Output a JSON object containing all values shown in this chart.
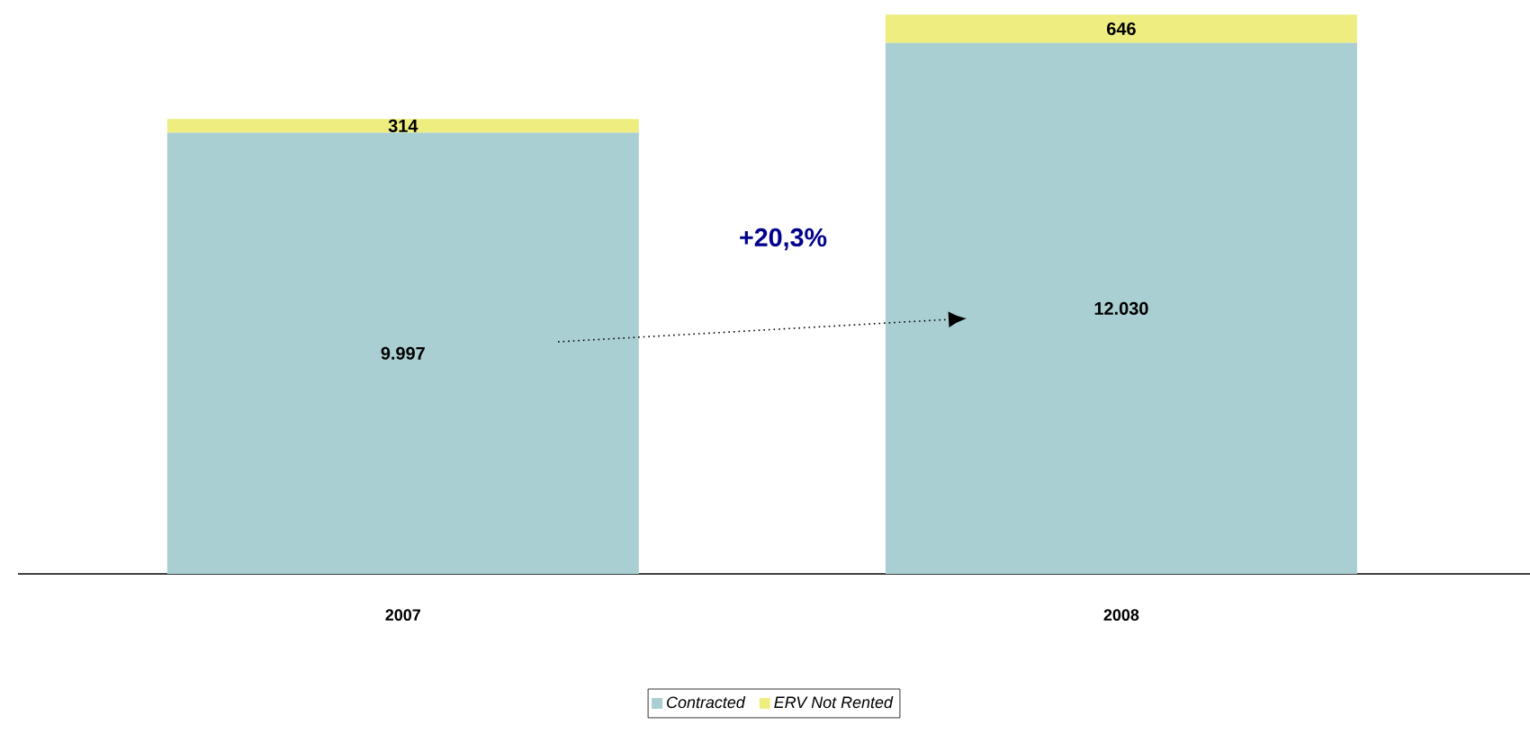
{
  "chart_data": {
    "type": "bar",
    "stacked": true,
    "categories": [
      "2007",
      "2008"
    ],
    "series": [
      {
        "name": "Contracted",
        "color": "#a9cfd2",
        "values": [
          9997,
          12030
        ],
        "value_labels": [
          "9.997",
          "12.030"
        ]
      },
      {
        "name": "ERV Not Rented",
        "color": "#eeee80",
        "values": [
          314,
          646
        ],
        "value_labels": [
          "314",
          "646"
        ]
      }
    ],
    "tick_labels": "x",
    "annotations": [
      "+20,3%"
    ],
    "legend": "bottom"
  }
}
